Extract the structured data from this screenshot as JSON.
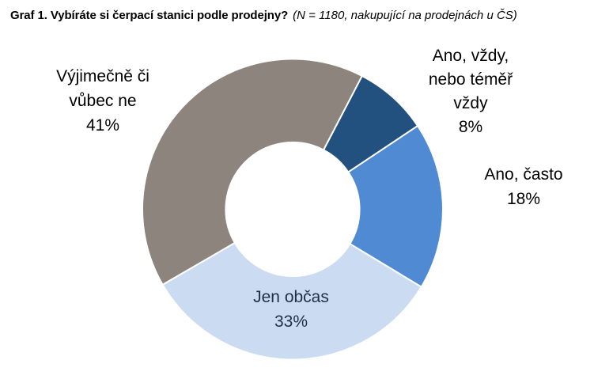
{
  "chart_data": {
    "type": "pie",
    "subtype": "donut",
    "title": "Graf 1. Vybíráte si čerpací stanici podle prodejny?",
    "note": "(N = 1180, nakupující na prodejnách u ČS)",
    "categories": [
      "Ano, vždy, nebo téměř vždy",
      "Ano, často",
      "Jen občas",
      "Výjimečně či vůbec ne"
    ],
    "values": [
      8,
      18,
      33,
      41
    ],
    "unit": "%",
    "colors": [
      "#22517f",
      "#4f8ad2",
      "#cbdcf2",
      "#8c847d"
    ],
    "start_angle_deg": 27.5,
    "donut_hole_ratio": 0.445,
    "slice_border_color": "#ffffff",
    "legend_position": "none",
    "labels": [
      {
        "lines": [
          "Ano, vždy,",
          "nebo téměř",
          "vždy",
          "8%"
        ],
        "placement": "outside-top-right",
        "color": "#000000"
      },
      {
        "lines": [
          "Ano, často",
          "18%"
        ],
        "placement": "outside-right",
        "color": "#000000"
      },
      {
        "lines": [
          "Jen občas",
          "33%"
        ],
        "placement": "inside-bottom",
        "color": "#20304a"
      },
      {
        "lines": [
          "Výjimečně či",
          "vůbec ne",
          "41%"
        ],
        "placement": "outside-top-left",
        "color": "#000000"
      }
    ]
  }
}
